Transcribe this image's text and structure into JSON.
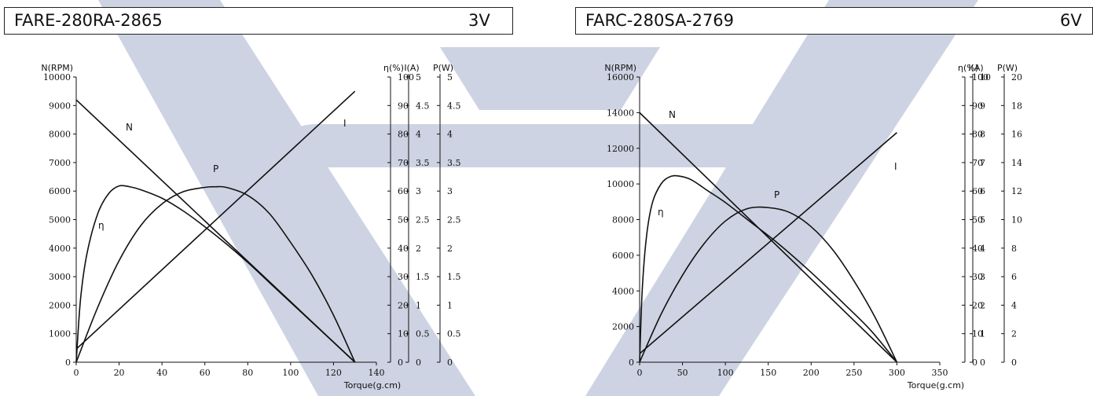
{
  "colors": {
    "watermark": "#cdd3e2",
    "ink": "#111111"
  },
  "chart_data": [
    {
      "type": "line",
      "title": "FARE-280RA-2865",
      "voltage": "3V",
      "xlabel": "Torque(g.cm)",
      "xlim": [
        0,
        140
      ],
      "x_ticks": [
        "0",
        "20",
        "40",
        "60",
        "80",
        "100",
        "120",
        "140"
      ],
      "axes": [
        {
          "label": "N(RPM)",
          "lim": [
            0,
            10000
          ],
          "ticks": [
            "0",
            "1000",
            "2000",
            "3000",
            "4000",
            "5000",
            "6000",
            "7000",
            "8000",
            "9000",
            "10000"
          ]
        },
        {
          "label": "η(%)",
          "lim": [
            0,
            100
          ],
          "ticks": [
            "0",
            "10",
            "20",
            "30",
            "40",
            "50",
            "60",
            "70",
            "80",
            "90",
            "100"
          ]
        },
        {
          "label": "I(A)",
          "lim": [
            0,
            5
          ],
          "ticks": [
            "0",
            "0.5",
            "1",
            "1.5",
            "2",
            "2.5",
            "3",
            "3.5",
            "4",
            "4.5",
            "5"
          ]
        },
        {
          "label": "P(W)",
          "lim": [
            0,
            5
          ],
          "ticks": [
            "0",
            "0.5",
            "1",
            "1.5",
            "2",
            "2.5",
            "3",
            "3.5",
            "4",
            "4.5",
            "5"
          ]
        }
      ],
      "series": [
        {
          "name": "N",
          "axis": 0,
          "x": [
            0,
            130
          ],
          "y": [
            9200,
            0
          ]
        },
        {
          "name": "I",
          "axis": 2,
          "x": [
            0,
            130
          ],
          "y": [
            0.23,
            4.75
          ]
        },
        {
          "name": "P",
          "axis": 1,
          "x": [
            0,
            10,
            20,
            30,
            40,
            50,
            60,
            65,
            70,
            80,
            90,
            100,
            110,
            120,
            130
          ],
          "y": [
            0,
            19.2,
            35.6,
            47.8,
            55.5,
            59.8,
            61.3,
            61.5,
            61.3,
            58.5,
            52.2,
            42.0,
            30.5,
            16.5,
            0
          ]
        },
        {
          "name": "η",
          "axis": 1,
          "x": [
            0,
            2,
            5,
            10,
            15,
            20,
            25,
            30,
            40,
            50,
            60,
            70,
            80,
            90,
            100,
            110,
            120,
            130
          ],
          "y": [
            0,
            22,
            38,
            52,
            59,
            61.8,
            61.5,
            60.5,
            57.5,
            53,
            47.5,
            41.5,
            35,
            28,
            21,
            14,
            7,
            0
          ]
        }
      ]
    },
    {
      "type": "line",
      "title": "FARC-280SA-2769",
      "voltage": "6V",
      "xlabel": "Torque(g.cm)",
      "xlim": [
        0,
        350
      ],
      "x_ticks": [
        "0",
        "50",
        "100",
        "150",
        "200",
        "250",
        "300",
        "350"
      ],
      "axes": [
        {
          "label": "N(RPM)",
          "lim": [
            0,
            16000
          ],
          "ticks": [
            "0",
            "2000",
            "4000",
            "6000",
            "8000",
            "10000",
            "12000",
            "14000",
            "16000"
          ]
        },
        {
          "label": "η(%)",
          "lim": [
            0,
            100
          ],
          "ticks": [
            "0",
            "10",
            "20",
            "30",
            "40",
            "50",
            "60",
            "70",
            "80",
            "90",
            "100"
          ]
        },
        {
          "label": "I(A)",
          "lim": [
            0,
            10
          ],
          "ticks": [
            "0",
            "1",
            "2",
            "3",
            "4",
            "5",
            "6",
            "7",
            "8",
            "9",
            "10"
          ]
        },
        {
          "label": "P(W)",
          "lim": [
            0,
            20
          ],
          "ticks": [
            "0",
            "2",
            "4",
            "6",
            "8",
            "10",
            "12",
            "14",
            "16",
            "18",
            "20"
          ]
        }
      ],
      "series": [
        {
          "name": "N",
          "axis": 0,
          "x": [
            0,
            300
          ],
          "y": [
            14000,
            0
          ]
        },
        {
          "name": "I",
          "axis": 2,
          "x": [
            0,
            300
          ],
          "y": [
            0.3,
            8.05
          ]
        },
        {
          "name": "P",
          "axis": 1,
          "x": [
            0,
            25,
            50,
            75,
            100,
            125,
            150,
            175,
            200,
            225,
            250,
            275,
            300
          ],
          "y": [
            0,
            16.8,
            30.5,
            41.5,
            49.5,
            53.8,
            54.2,
            52.5,
            47.5,
            39.5,
            28.5,
            15.5,
            0
          ]
        },
        {
          "name": "η",
          "axis": 1,
          "x": [
            0,
            3,
            8,
            15,
            25,
            35,
            45,
            60,
            80,
            100,
            130,
            160,
            200,
            240,
            270,
            300
          ],
          "y": [
            0,
            25,
            44,
            56,
            62.5,
            65,
            65.3,
            64,
            60,
            56,
            49,
            42,
            31.5,
            20,
            11,
            0
          ]
        }
      ]
    }
  ]
}
